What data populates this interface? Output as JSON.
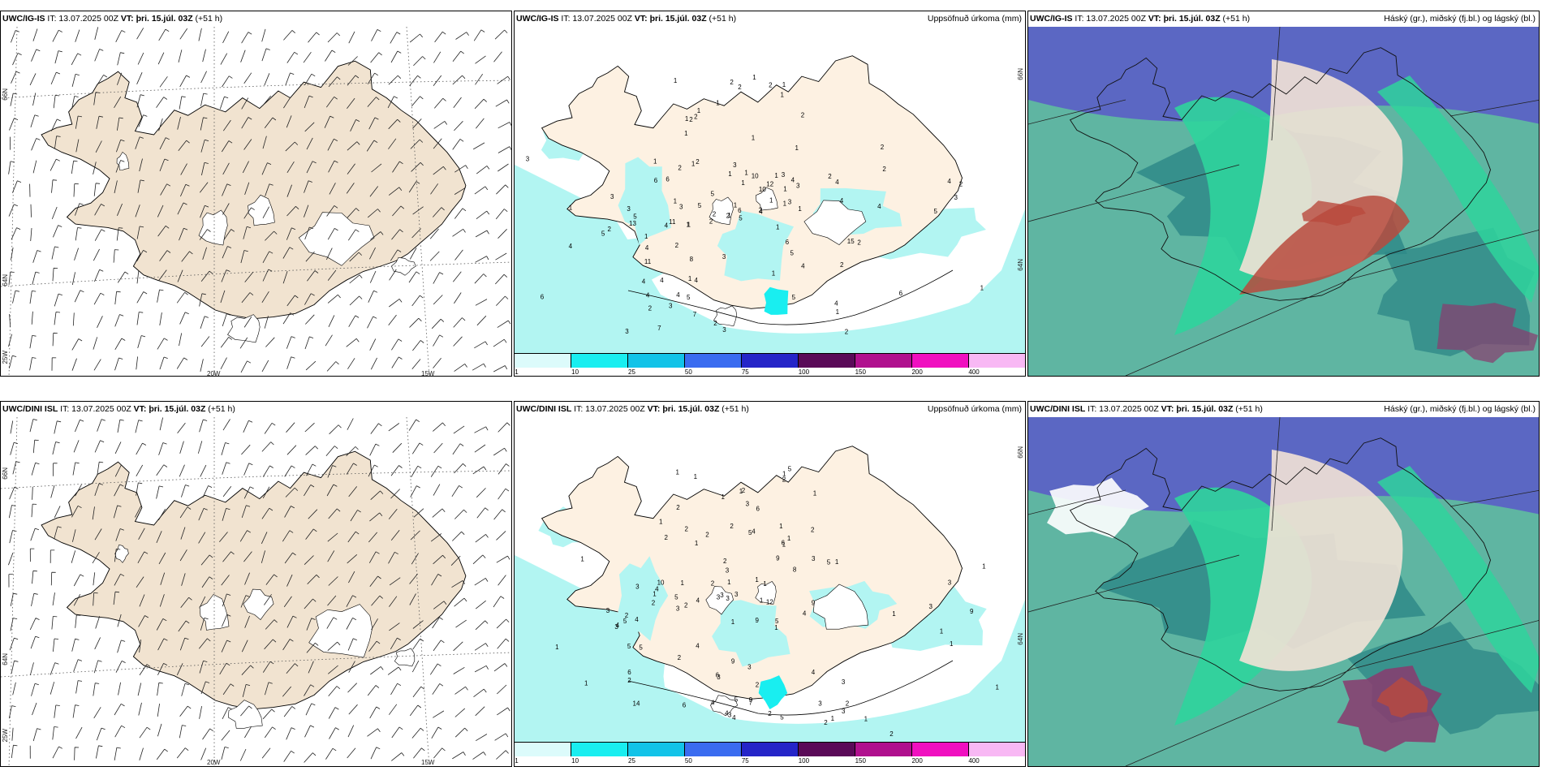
{
  "colors": {
    "land": "#f1e3d0",
    "land_precip": "#fdf1e2",
    "sea_precip": "#b2f5f2",
    "cloud_high_blue": "#5b5ec7",
    "cloud_teal": "#2f8a88",
    "cloud_green": "#2fd49c",
    "cloud_red": "#b94a3d",
    "cloud_purple": "#8a3a6e"
  },
  "panels": {
    "top_wind": {
      "model": "UWC/IG-IS",
      "it_text": "IT: 13.07.2025 00Z",
      "vt_text": "VT: þri. 15.júl. 03Z",
      "lead": "(+51 h)",
      "lat_labels": [
        "66N",
        "64N",
        "25W"
      ],
      "lon_labels": [
        "20W",
        "15W"
      ]
    },
    "top_precip": {
      "model": "UWC/IG-IS",
      "it_text": "IT: 13.07.2025 00Z",
      "vt_text": "VT: þri. 15.júl. 03Z",
      "lead": "(+51 h)",
      "title": "Uppsöfnuð úrkoma (mm)",
      "lat_labels": [
        "66N",
        "64N"
      ],
      "numbers": [
        "1",
        "1",
        "2",
        "1",
        "2",
        "2",
        "1",
        "1",
        "2",
        "1",
        "2",
        "1",
        "2",
        "2",
        "2",
        "1",
        "1",
        "1",
        "2",
        "1",
        "1",
        "1",
        "1",
        "1",
        "1",
        "2",
        "1",
        "2",
        "1",
        "1",
        "1",
        "1",
        "2",
        "1",
        "1",
        "1",
        "11",
        "1",
        "3",
        "4",
        "4",
        "2",
        "2",
        "3",
        "3",
        "4",
        "2",
        "5",
        "2",
        "3",
        "6",
        "3",
        "4",
        "3",
        "4",
        "7",
        "6",
        "8",
        "7",
        "5",
        "3",
        "4",
        "5",
        "10",
        "3",
        "4",
        "13",
        "15",
        "12",
        "2",
        "4",
        "6",
        "11",
        "5",
        "5",
        "3",
        "4",
        "2",
        "4",
        "6",
        "3",
        "4",
        "2",
        "4",
        "4",
        "3",
        "5",
        "6",
        "2",
        "4",
        "2",
        "3",
        "4",
        "5",
        "2",
        "1",
        "1",
        "1",
        "1",
        "1",
        "1",
        "1",
        "10",
        "5",
        "5",
        "6",
        "4",
        "3",
        "2"
      ]
    },
    "top_cloud": {
      "model": "UWC/IG-IS",
      "it_text": "IT: 13.07.2025 00Z",
      "vt_text": "VT: þri. 15.júl. 03Z",
      "lead": "(+51 h)",
      "title": "Háský (gr.), miðský (fj.bl.) og lágský (bl.)"
    },
    "bottom_wind": {
      "model": "UWC/DINI ISL",
      "it_text": "IT: 13.07.2025 00Z",
      "vt_text": "VT: þri. 15.júl. 03Z",
      "lead": "(+51 h)",
      "lat_labels": [
        "66N",
        "64N",
        "25W"
      ],
      "lon_labels": [
        "20W",
        "15W"
      ]
    },
    "bottom_precip": {
      "model": "UWC/DINI ISL",
      "it_text": "IT: 13.07.2025 00Z",
      "vt_text": "VT: þri. 15.júl. 03Z",
      "lead": "(+51 h)",
      "title": "Uppsöfnuð úrkoma (mm)",
      "lat_labels": [
        "66N",
        "64N"
      ],
      "numbers": [
        "2",
        "1",
        "2",
        "1",
        "1",
        "1",
        "2",
        "2",
        "1",
        "1",
        "1",
        "1",
        "9",
        "6",
        "4",
        "1",
        "2",
        "1",
        "2",
        "1",
        "1",
        "2",
        "2",
        "1",
        "1",
        "3",
        "1",
        "2",
        "2",
        "2",
        "9",
        "10",
        "3",
        "5",
        "4",
        "3",
        "5",
        "4",
        "3",
        "4",
        "3",
        "9",
        "3",
        "1",
        "6",
        "6",
        "2",
        "4",
        "3",
        "3",
        "2",
        "5",
        "2",
        "5",
        "3",
        "5",
        "14",
        "12",
        "9",
        "5",
        "9",
        "8",
        "4",
        "7",
        "6",
        "5",
        "5",
        "3",
        "3",
        "2",
        "2",
        "2",
        "2",
        "4",
        "3",
        "3",
        "4",
        "4",
        "3",
        "3",
        "4",
        "5",
        "3",
        "1",
        "1",
        "1",
        "1",
        "1",
        "1",
        "2",
        "3",
        "3",
        "1",
        "5",
        "9",
        "3",
        "2",
        "1",
        "1",
        "1",
        "1",
        "1",
        "4",
        "6",
        "1",
        "1"
      ]
    },
    "bottom_cloud": {
      "model": "UWC/DINI ISL",
      "it_text": "IT: 13.07.2025 00Z",
      "vt_text": "VT: þri. 15.júl. 03Z",
      "lead": "(+51 h)",
      "title": "Háský (gr.), miðský (fj.bl.) og lágský (bl.)"
    }
  },
  "colorbar": {
    "ticks": [
      "1",
      "10",
      "25",
      "50",
      "75",
      "100",
      "150",
      "200",
      "400"
    ],
    "colors": [
      "#dcfbfb",
      "#19eef0",
      "#12c3e8",
      "#3a6cf0",
      "#2525c8",
      "#5a0a58",
      "#b0108e",
      "#f010c0",
      "#f8b8f4"
    ]
  }
}
